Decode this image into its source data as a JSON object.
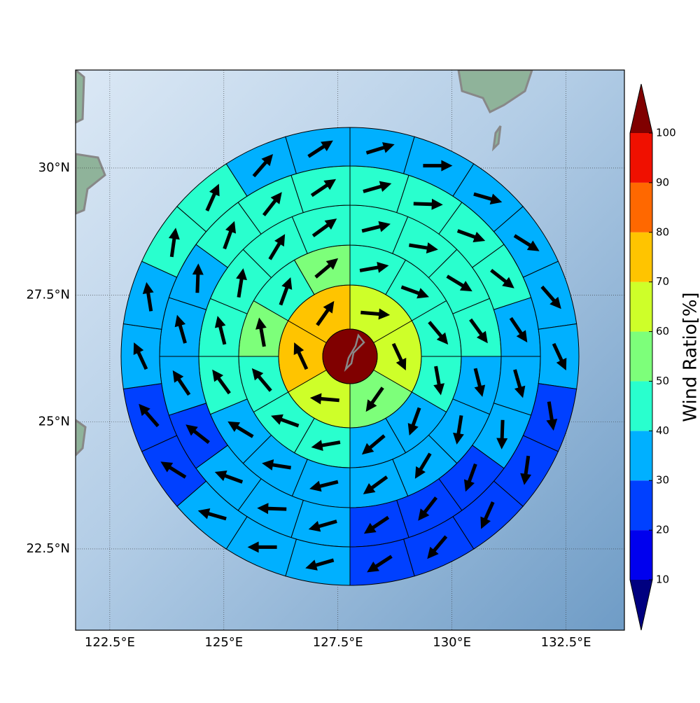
{
  "chart_data": {
    "type": "polar_sectors",
    "xlim": [
      121.75,
      133.78
    ],
    "ylim": [
      20.9,
      31.93
    ],
    "xticks": [
      {
        "value": 122.5,
        "label": "122.5°E"
      },
      {
        "value": 125,
        "label": "125°E"
      },
      {
        "value": 127.5,
        "label": "127.5°E"
      },
      {
        "value": 130,
        "label": "130°E"
      },
      {
        "value": 132.5,
        "label": "132.5°E"
      }
    ],
    "yticks": [
      {
        "value": 22.5,
        "label": "22.5°N"
      },
      {
        "value": 25,
        "label": "25°N"
      },
      {
        "value": 27.5,
        "label": "27.5°N"
      },
      {
        "value": 30,
        "label": "30°N"
      }
    ],
    "grid": true,
    "center_value": 105,
    "rings": [
      {
        "values": [
          65,
          65,
          55,
          65,
          75,
          75
        ],
        "directions": [
          95,
          155,
          215,
          275,
          335,
          35
        ]
      },
      {
        "values": [
          45,
          45,
          45,
          45,
          35,
          35,
          45,
          45,
          45,
          55,
          45,
          55
        ],
        "directions": [
          80,
          110,
          140,
          170,
          200,
          230,
          260,
          290,
          320,
          350,
          20,
          50
        ]
      },
      {
        "values": [
          45,
          45,
          45,
          45,
          35,
          35,
          35,
          35,
          35,
          35,
          35,
          45,
          45,
          45,
          45,
          45
        ],
        "directions": [
          76,
          99,
          121,
          144,
          166,
          189,
          211,
          234,
          256,
          279,
          301,
          324,
          346,
          9,
          31,
          54
        ]
      },
      {
        "values": [
          45,
          45,
          45,
          45,
          35,
          35,
          35,
          25,
          25,
          25,
          35,
          35,
          35,
          25,
          35,
          35,
          35,
          45,
          45,
          45
        ],
        "directions": [
          74,
          92,
          110,
          128,
          146,
          164,
          182,
          200,
          218,
          236,
          254,
          272,
          290,
          308,
          326,
          344,
          2,
          20,
          38,
          56
        ]
      },
      {
        "values": [
          35,
          35,
          35,
          35,
          35,
          35,
          25,
          25,
          25,
          25,
          25,
          35,
          35,
          35,
          25,
          25,
          35,
          35,
          45,
          45,
          35,
          35
        ],
        "directions": [
          73,
          90,
          106,
          122,
          139,
          155,
          171,
          188,
          204,
          220,
          237,
          254,
          270,
          286,
          302,
          319,
          335,
          351,
          8,
          24,
          41,
          57
        ]
      }
    ],
    "colorbar": {
      "label": "Wind Ratio[%]",
      "ticks": [
        10,
        20,
        30,
        40,
        50,
        60,
        70,
        80,
        90,
        100
      ],
      "colors": [
        "#0000ee",
        "#0040ff",
        "#00b0ff",
        "#29ffce",
        "#7dff7a",
        "#ceff29",
        "#ffc400",
        "#ff6800",
        "#f01000"
      ],
      "under": "#000080",
      "over": "#800000"
    }
  }
}
